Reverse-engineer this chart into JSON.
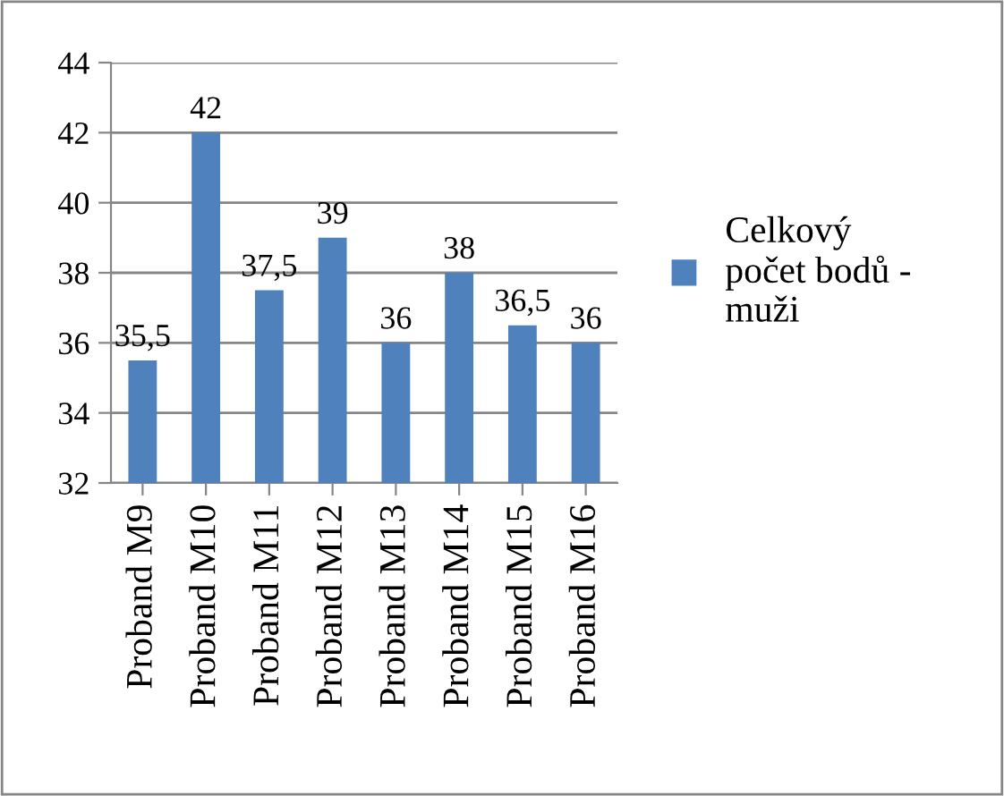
{
  "chart_data": {
    "type": "bar",
    "categories": [
      "Proband M9",
      "Proband M10",
      "Proband M11",
      "Proband M12",
      "Proband M13",
      "Proband M14",
      "Proband M15",
      "Proband M16"
    ],
    "series": [
      {
        "name": "Celkový\npočet bodů -\nmuži",
        "color": "#4f81bd",
        "values": [
          35.5,
          42,
          37.5,
          39,
          36,
          38,
          36.5,
          36
        ],
        "value_labels": [
          "35,5",
          "42",
          "37,5",
          "39",
          "36",
          "38",
          "36,5",
          "36"
        ]
      }
    ],
    "ylim": [
      32,
      44
    ],
    "yticks": [
      32,
      34,
      36,
      38,
      40,
      42,
      44
    ],
    "grid": "y",
    "legend": "right"
  }
}
